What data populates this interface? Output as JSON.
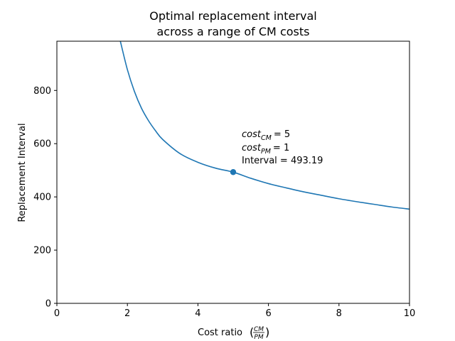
{
  "chart_data": {
    "type": "line",
    "title_line1": "Optimal replacement interval",
    "title_line2": "across a range of CM costs",
    "xlabel_prefix": "Cost ratio",
    "xlabel_frac_num": "CM",
    "xlabel_frac_den": "PM",
    "ylabel": "Replacement Interval",
    "xlim": [
      0,
      10
    ],
    "ylim": [
      0,
      985
    ],
    "x_ticks": [
      0,
      2,
      4,
      6,
      8,
      10
    ],
    "y_ticks": [
      0,
      200,
      400,
      600,
      800
    ],
    "grid": false,
    "series": [
      {
        "color": "#1f77b4",
        "x": [
          1.8,
          2.0,
          2.2,
          2.4,
          2.6,
          2.8,
          3.0,
          3.5,
          4.0,
          4.5,
          5.0,
          5.5,
          6.0,
          6.5,
          7.0,
          7.5,
          8.0,
          8.5,
          9.0,
          9.5,
          10.0
        ],
        "y": [
          985,
          878,
          796,
          733,
          686,
          648,
          616,
          562,
          530,
          508,
          493,
          470,
          450,
          434,
          419,
          406,
          393,
          382,
          372,
          362,
          354
        ]
      }
    ],
    "highlight_point": {
      "x": 5,
      "y": 493.19,
      "color": "#1f77b4"
    },
    "annotation": {
      "line1_var": "cost",
      "line1_sub": "CM",
      "line1_val": "= 5",
      "line2_var": "cost",
      "line2_sub": "PM",
      "line2_val": "= 1",
      "line3": "Interval = 493.19"
    }
  }
}
